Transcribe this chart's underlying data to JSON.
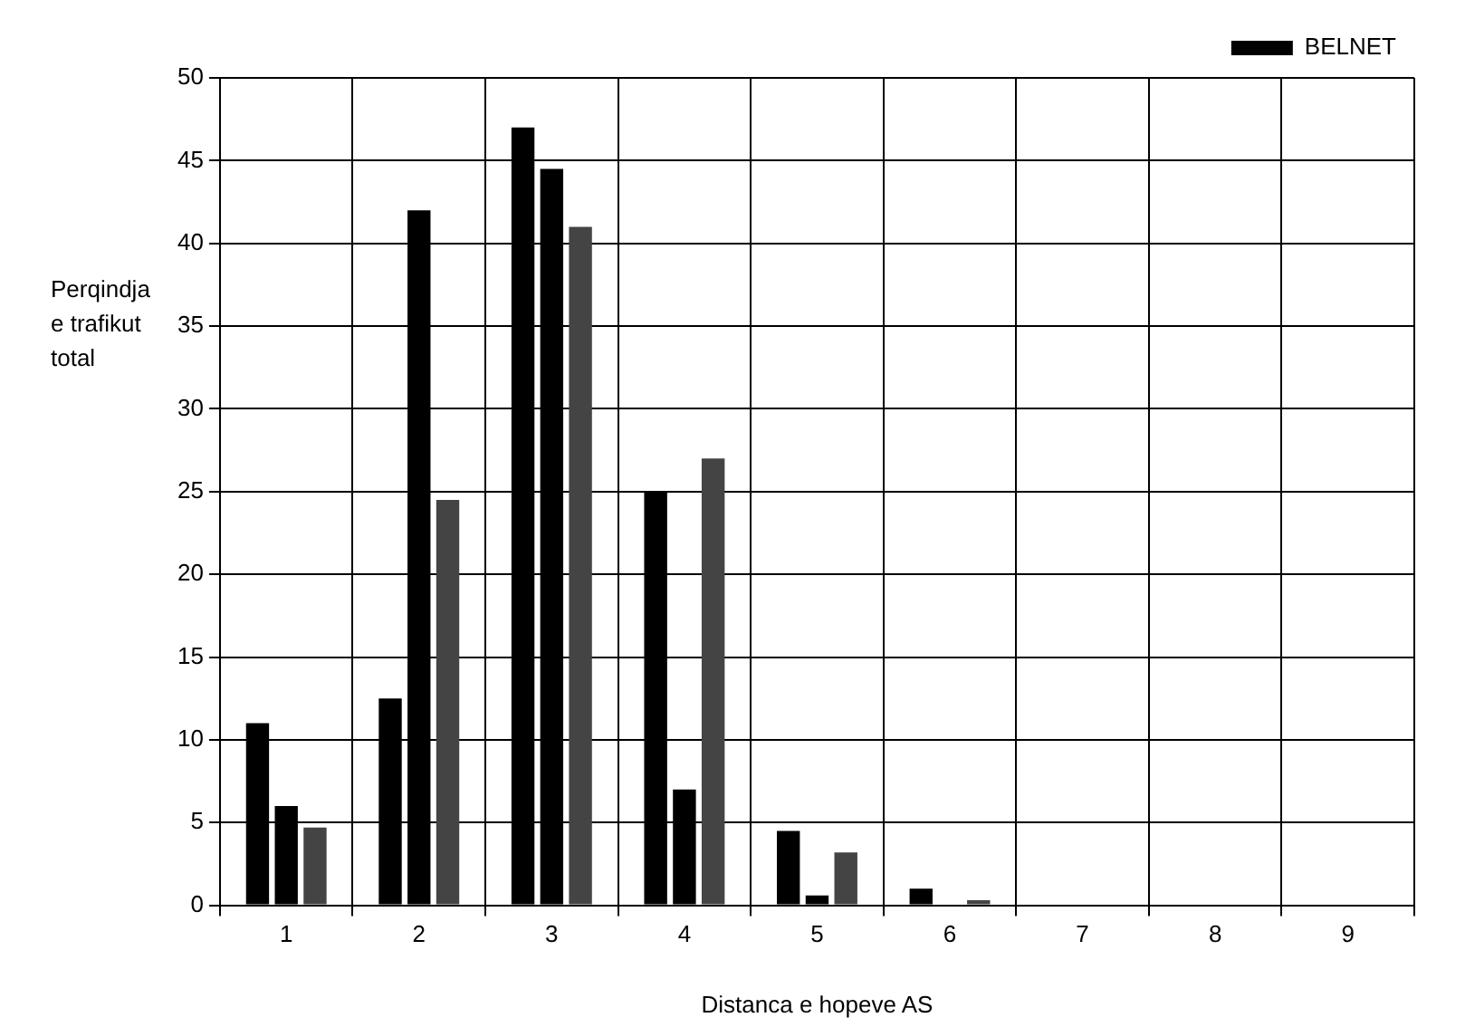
{
  "chart_data": {
    "type": "bar",
    "xlabel": "Distanca e hopeve AS",
    "ylabel": "Perqindja e trafikut total",
    "categories": [
      "1",
      "2",
      "3",
      "4",
      "5",
      "6",
      "7",
      "8",
      "9"
    ],
    "series": [
      {
        "name": "BELNET",
        "color": "#000000",
        "values": [
          11,
          12.5,
          47,
          25,
          4.5,
          1,
          0,
          0,
          0
        ]
      },
      {
        "color": "#000000",
        "values": [
          6,
          42,
          44.5,
          7,
          0.6,
          0,
          0,
          0,
          0
        ]
      },
      {
        "color": "#444444",
        "values": [
          4.7,
          24.5,
          41,
          27,
          3.2,
          0.3,
          0,
          0,
          0
        ]
      }
    ],
    "ylim": [
      0,
      50
    ],
    "yticks": [
      0,
      5,
      10,
      15,
      20,
      25,
      30,
      35,
      40,
      45,
      50
    ],
    "grid": true,
    "legend": "top right"
  }
}
